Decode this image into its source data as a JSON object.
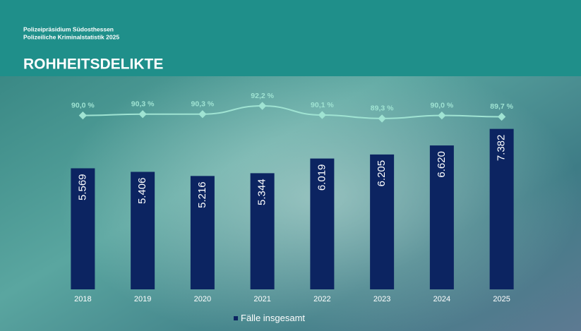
{
  "header": {
    "org": "Polizeipräsidium Südosthessen",
    "subtitle": "Polizeiliche Kriminalstatistik 2025"
  },
  "chart_data": {
    "type": "bar",
    "title": "ROHHEITSDELIKTE",
    "categories": [
      "2018",
      "2019",
      "2020",
      "2021",
      "2022",
      "2023",
      "2024",
      "2025"
    ],
    "ylim": [
      0,
      10000
    ],
    "y2lim": [
      50,
      100
    ],
    "legend": "bottom",
    "series": [
      {
        "name": "Fälle insgesamt",
        "type": "bar",
        "color": "#0c2461",
        "values": [
          5569,
          5406,
          5216,
          5344,
          6019,
          6205,
          6620,
          7382
        ],
        "value_labels": [
          "5.569",
          "5.406",
          "5.216",
          "5.344",
          "6.019",
          "6.205",
          "6.620",
          "7.382"
        ]
      },
      {
        "type": "line",
        "axis": "y2",
        "color": "#9fe3d2",
        "values": [
          90.0,
          90.3,
          90.3,
          92.2,
          90.1,
          89.3,
          90.0,
          89.7
        ],
        "value_labels": [
          "90,0 %",
          "90,3 %",
          "90,3 %",
          "92,2 %",
          "90,1 %",
          "89,3 %",
          "90,0 %",
          "89,7 %"
        ]
      }
    ]
  }
}
